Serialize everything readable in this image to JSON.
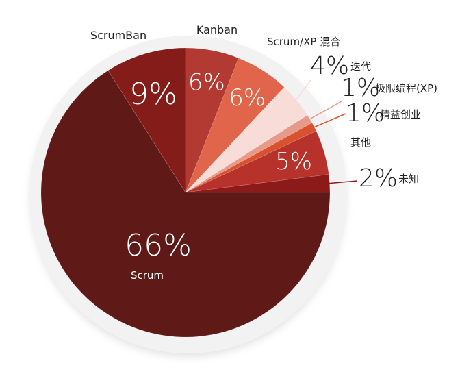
{
  "chart_data": {
    "type": "pie",
    "title": "",
    "start_angle_deg": 90,
    "direction": "clockwise",
    "slices": [
      {
        "label": "Kanban",
        "value": 6,
        "pct_text": "6%",
        "color": "#b23a33"
      },
      {
        "label": "Scrum/XP 混合",
        "value": 6,
        "pct_text": "6%",
        "color": "#e0654a"
      },
      {
        "label": "迭代",
        "value": 4,
        "pct_text": "4%",
        "color": "#f8dcd8"
      },
      {
        "label": "极限编程(XP)",
        "value": 1,
        "pct_text": "1%",
        "color": "#e89a8a"
      },
      {
        "label": "精益创业",
        "value": 1,
        "pct_text": "1%",
        "color": "#d9512f"
      },
      {
        "label": "其他",
        "value": 5,
        "pct_text": "5%",
        "color": "#b8322c"
      },
      {
        "label": "未知",
        "value": 2,
        "pct_text": "2%",
        "color": "#8b1a18"
      },
      {
        "label": "Scrum",
        "value": 66,
        "pct_text": "66%",
        "color": "#5f1917"
      },
      {
        "label": "ScrumBan",
        "value": 9,
        "pct_text": "9%",
        "color": "#841d19"
      }
    ]
  }
}
